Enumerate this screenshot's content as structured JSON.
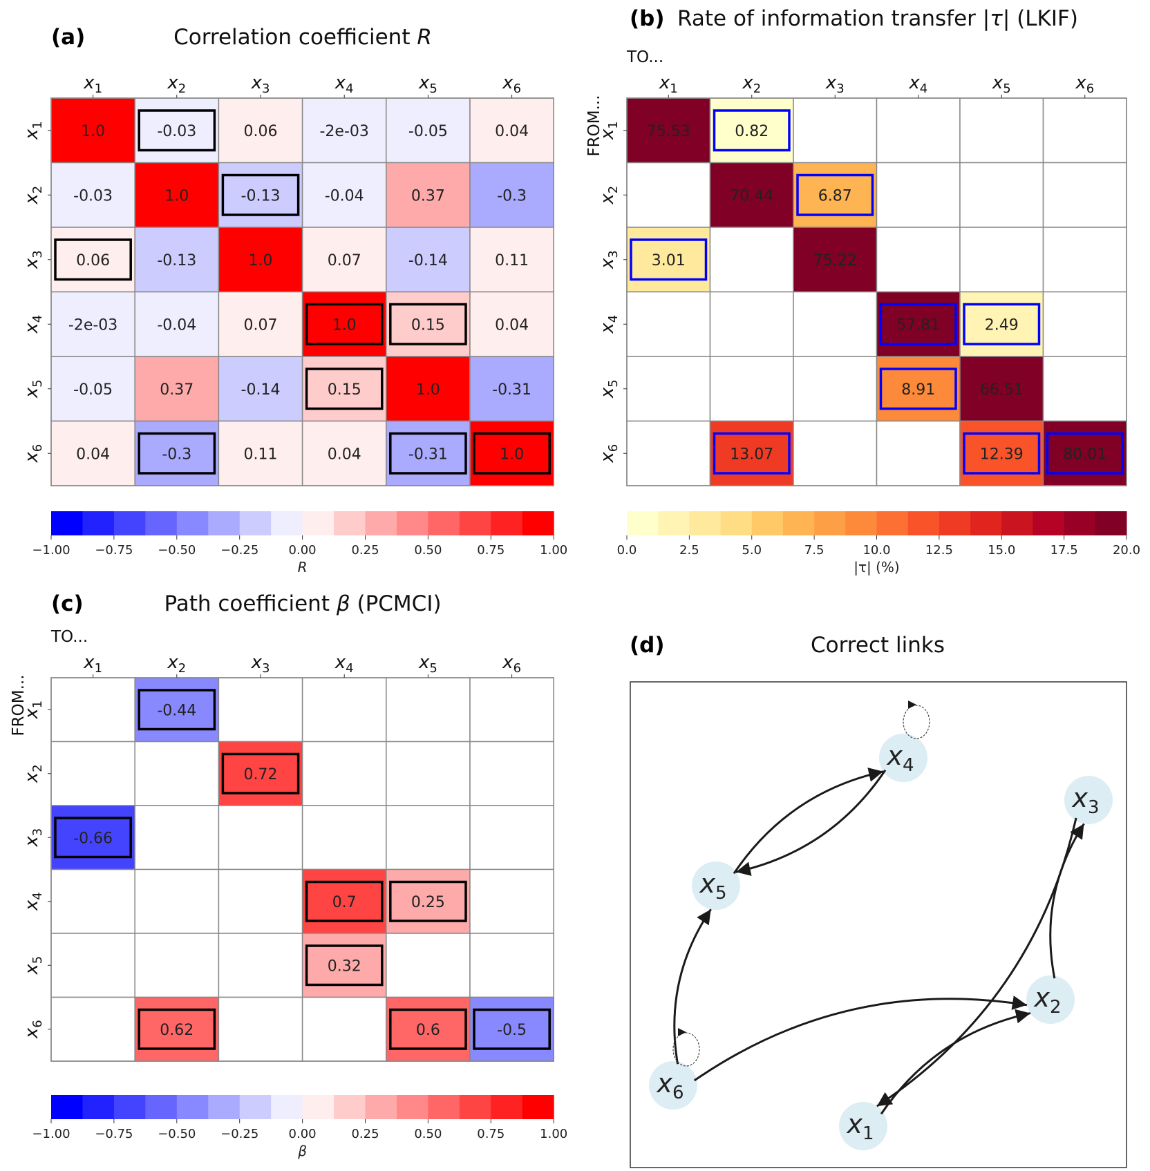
{
  "figure": {
    "panels": [
      {
        "id": "a",
        "label": "(a)",
        "title": "Correlation coefficient R"
      },
      {
        "id": "b",
        "label": "(b)",
        "title": "Rate of information transfer |τ| (LKIF)"
      },
      {
        "id": "c",
        "label": "(c)",
        "title": "Path coefficient β (PCMCI)"
      },
      {
        "id": "d",
        "label": "(d)",
        "title": "Correct links"
      }
    ]
  },
  "chart_data": [
    {
      "type": "heatmap",
      "panel": "a",
      "title": "Correlation coefficient R",
      "x_labels": [
        "x1",
        "x2",
        "x3",
        "x4",
        "x5",
        "x6"
      ],
      "y_labels": [
        "x1",
        "x2",
        "x3",
        "x4",
        "x5",
        "x6"
      ],
      "x_axis_word": "",
      "y_axis_word": "",
      "cells": [
        [
          "1.0",
          "-0.03",
          "0.06",
          "-2e-03",
          "-0.05",
          "0.04"
        ],
        [
          "-0.03",
          "1.0",
          "-0.13",
          "-0.04",
          "0.37",
          "-0.3"
        ],
        [
          "0.06",
          "-0.13",
          "1.0",
          "0.07",
          "-0.14",
          "0.11"
        ],
        [
          "-2e-03",
          "-0.04",
          "0.07",
          "1.0",
          "0.15",
          "0.04"
        ],
        [
          "-0.05",
          "0.37",
          "-0.14",
          "0.15",
          "1.0",
          "-0.31"
        ],
        [
          "0.04",
          "-0.3",
          "0.11",
          "0.04",
          "-0.31",
          "1.0"
        ]
      ],
      "highlighted": [
        [
          0,
          1
        ],
        [
          1,
          2
        ],
        [
          2,
          0
        ],
        [
          3,
          3
        ],
        [
          3,
          4
        ],
        [
          4,
          3
        ],
        [
          5,
          1
        ],
        [
          5,
          4
        ],
        [
          5,
          5
        ]
      ],
      "highlight_color": "#000000",
      "colormap": "bwr",
      "colorbar": {
        "label": "R",
        "range": [
          -1,
          1
        ],
        "bins": 16,
        "ticks": [
          "−1.00",
          "−0.75",
          "−0.50",
          "−0.25",
          "0.00",
          "0.25",
          "0.50",
          "0.75",
          "1.00"
        ]
      }
    },
    {
      "type": "heatmap",
      "panel": "b",
      "title": "Rate of information transfer |τ| (LKIF)",
      "x_labels": [
        "x1",
        "x2",
        "x3",
        "x4",
        "x5",
        "x6"
      ],
      "y_labels": [
        "x1",
        "x2",
        "x3",
        "x4",
        "x5",
        "x6"
      ],
      "x_axis_word": "TO...",
      "y_axis_word": "FROM...",
      "cells": [
        [
          "75.53",
          "0.82",
          "",
          "",
          "",
          ""
        ],
        [
          "",
          "70.44",
          "6.87",
          "",
          "",
          ""
        ],
        [
          "3.01",
          "",
          "75.22",
          "",
          "",
          ""
        ],
        [
          "",
          "",
          "",
          "57.81",
          "2.49",
          ""
        ],
        [
          "",
          "",
          "",
          "8.91",
          "66.51",
          ""
        ],
        [
          "",
          "13.07",
          "",
          "",
          "12.39",
          "80.01"
        ]
      ],
      "highlighted": [
        [
          0,
          1
        ],
        [
          1,
          2
        ],
        [
          2,
          0
        ],
        [
          3,
          3
        ],
        [
          3,
          4
        ],
        [
          4,
          3
        ],
        [
          5,
          1
        ],
        [
          5,
          4
        ],
        [
          5,
          5
        ]
      ],
      "highlight_color": "#0000ff",
      "colormap": "YlOrRd",
      "colorbar": {
        "label": "|τ| (%)",
        "range": [
          0,
          20
        ],
        "bins": 16,
        "ticks": [
          "0.0",
          "2.5",
          "5.0",
          "7.5",
          "10.0",
          "12.5",
          "15.0",
          "17.5",
          "20.0"
        ]
      }
    },
    {
      "type": "heatmap",
      "panel": "c",
      "title": "Path coefficient β (PCMCI)",
      "x_labels": [
        "x1",
        "x2",
        "x3",
        "x4",
        "x5",
        "x6"
      ],
      "y_labels": [
        "x1",
        "x2",
        "x3",
        "x4",
        "x5",
        "x6"
      ],
      "x_axis_word": "TO...",
      "y_axis_word": "FROM...",
      "cells": [
        [
          "",
          "-0.44",
          "",
          "",
          "",
          ""
        ],
        [
          "",
          "",
          "0.72",
          "",
          "",
          ""
        ],
        [
          "-0.66",
          "",
          "",
          "",
          "",
          ""
        ],
        [
          "",
          "",
          "",
          "0.7",
          "0.25",
          ""
        ],
        [
          "",
          "",
          "",
          "0.32",
          "",
          ""
        ],
        [
          "",
          "0.62",
          "",
          "",
          "0.6",
          "-0.5"
        ]
      ],
      "highlighted": [
        [
          0,
          1
        ],
        [
          1,
          2
        ],
        [
          2,
          0
        ],
        [
          3,
          3
        ],
        [
          3,
          4
        ],
        [
          4,
          3
        ],
        [
          5,
          1
        ],
        [
          5,
          4
        ],
        [
          5,
          5
        ]
      ],
      "highlight_color": "#000000",
      "colormap": "bwr",
      "colorbar": {
        "label": "β",
        "range": [
          -1,
          1
        ],
        "bins": 16,
        "ticks": [
          "−1.00",
          "−0.75",
          "−0.50",
          "−0.25",
          "0.00",
          "0.25",
          "0.50",
          "0.75",
          "1.00"
        ]
      }
    },
    {
      "type": "graph",
      "panel": "d",
      "title": "Correct links",
      "nodes": [
        {
          "id": "x1",
          "label": "x",
          "sub": "1"
        },
        {
          "id": "x2",
          "label": "x",
          "sub": "2"
        },
        {
          "id": "x3",
          "label": "x",
          "sub": "3"
        },
        {
          "id": "x4",
          "label": "x",
          "sub": "4"
        },
        {
          "id": "x5",
          "label": "x",
          "sub": "5"
        },
        {
          "id": "x6",
          "label": "x",
          "sub": "6"
        }
      ],
      "edges": [
        {
          "from": "x1",
          "to": "x2"
        },
        {
          "from": "x2",
          "to": "x3"
        },
        {
          "from": "x3",
          "to": "x1"
        },
        {
          "from": "x4",
          "to": "x5"
        },
        {
          "from": "x5",
          "to": "x4"
        },
        {
          "from": "x6",
          "to": "x2"
        },
        {
          "from": "x6",
          "to": "x5"
        }
      ],
      "self_loops": [
        "x4",
        "x6"
      ],
      "node_color": "#dcedf4"
    }
  ]
}
